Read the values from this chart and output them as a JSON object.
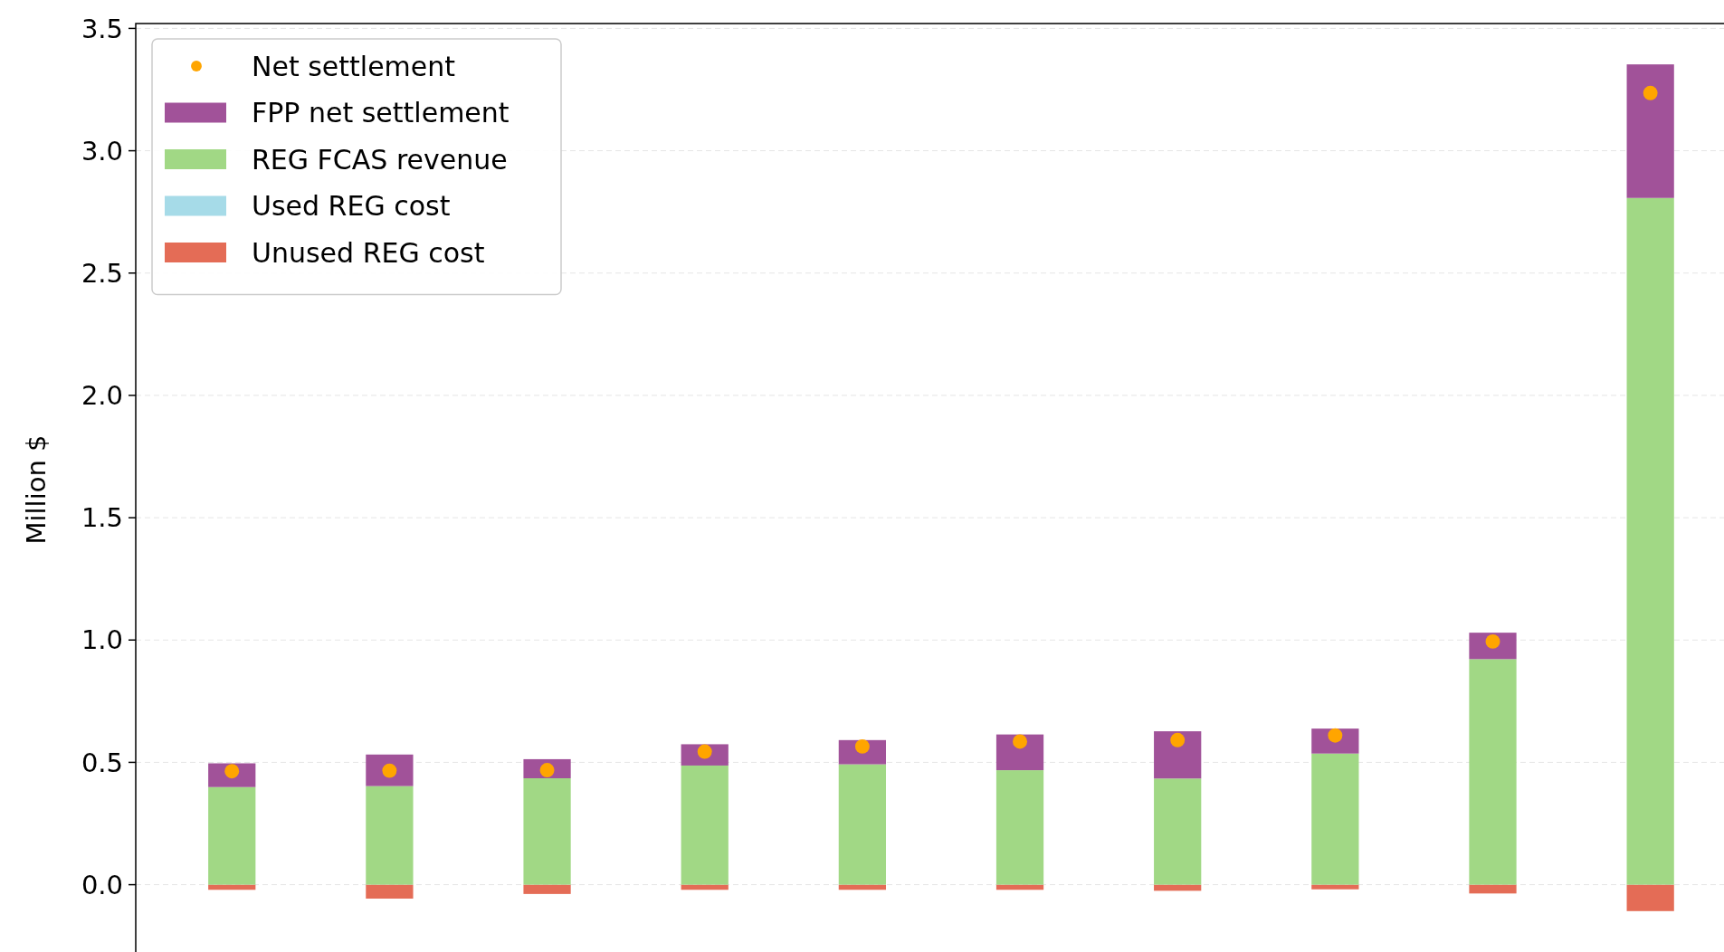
{
  "chart_data": {
    "type": "bar",
    "stacked": true,
    "ylabel": "Million $",
    "categories": [
      null,
      null,
      null,
      null,
      null,
      null,
      null,
      null,
      null,
      null
    ],
    "series": [
      {
        "name": "Unused REG cost",
        "color": "#e46c56",
        "values": [
          -0.021,
          -0.057,
          -0.038,
          -0.021,
          -0.021,
          -0.021,
          -0.025,
          -0.019,
          -0.036,
          -0.108
        ]
      },
      {
        "name": "Used REG cost",
        "color": "#a6dbe8",
        "values": [
          null,
          0,
          0,
          null,
          0,
          0,
          null,
          0,
          0,
          null
        ]
      },
      {
        "name": "REG FCAS revenue",
        "color": "#a1d885",
        "values": [
          0.399,
          0.403,
          0.435,
          0.487,
          0.492,
          0.468,
          0.434,
          0.536,
          0.922,
          2.807
        ]
      },
      {
        "name": "FPP net settlement",
        "color": "#a15299",
        "values": [
          0.097,
          0.129,
          0.078,
          0.087,
          0.099,
          0.146,
          0.193,
          0.102,
          0.108,
          0.546
        ]
      },
      {
        "name": "Net settlement",
        "type": "scatter",
        "color": "#ffa500",
        "values": [
          0.464,
          0.466,
          0.468,
          0.544,
          0.565,
          0.585,
          0.591,
          0.61,
          0.994,
          3.236
        ]
      }
    ],
    "ylim": [
      -0.29,
      3.52
    ],
    "yticks": [
      {
        "value": 0,
        "label": "0.0"
      },
      0.5,
      {
        "value": 1,
        "label": "1.0"
      },
      1.5,
      {
        "value": 2,
        "label": "2.0"
      },
      2.5,
      {
        "value": 3,
        "label": "3.0"
      },
      3.5
    ],
    "grid": "y",
    "legend": "top left",
    "tick_labels": "y",
    "marker": "circle"
  }
}
